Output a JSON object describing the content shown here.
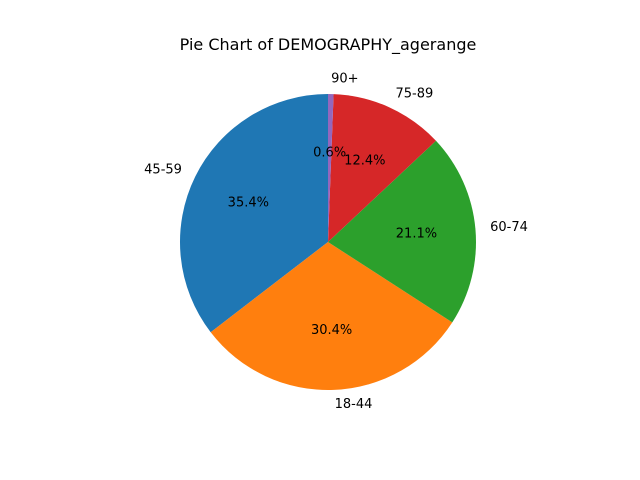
{
  "chart_data": {
    "type": "pie",
    "title": "Pie Chart of DEMOGRAPHY_agerange",
    "slices": [
      {
        "label": "45-59",
        "value": 35.4,
        "pct_label": "35.4%",
        "color": "#1f77b4"
      },
      {
        "label": "18-44",
        "value": 30.4,
        "pct_label": "30.4%",
        "color": "#ff7f0e"
      },
      {
        "label": "60-74",
        "value": 21.1,
        "pct_label": "21.1%",
        "color": "#2ca02c"
      },
      {
        "label": "75-89",
        "value": 12.4,
        "pct_label": "12.4%",
        "color": "#d62728"
      },
      {
        "label": "90+",
        "value": 0.6,
        "pct_label": "0.6%",
        "color": "#9467bd"
      }
    ],
    "start_angle_deg": 90,
    "direction": "counterclockwise"
  }
}
